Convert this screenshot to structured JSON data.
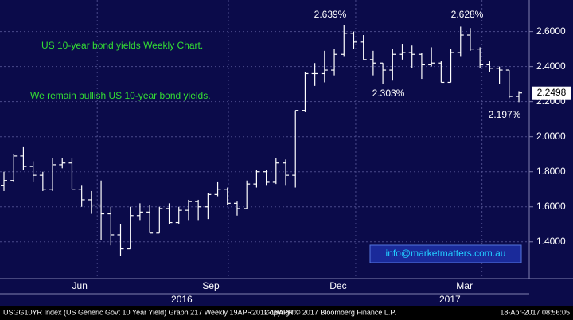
{
  "chart_data": {
    "type": "ohlc",
    "title": "US 10-year bond yields Weekly Chart.",
    "subtitle": "We remain bullish US 10-year bond yields.",
    "note": "info@marketmatters.com.au",
    "annotations": [
      "2.639%",
      "2.628%",
      "2.303%",
      "2.197%"
    ],
    "color": "#ffffff",
    "grid": true,
    "open": [
      1.72,
      1.75,
      1.89,
      1.83,
      1.78,
      1.7,
      1.84,
      1.85,
      1.7,
      1.64,
      1.61,
      1.56,
      1.44,
      1.36,
      1.55,
      1.57,
      1.45,
      1.59,
      1.51,
      1.58,
      1.63,
      1.6,
      1.67,
      1.7,
      1.62,
      1.59,
      1.73,
      1.8,
      1.74,
      1.85,
      1.78,
      2.15,
      2.36,
      2.36,
      2.38,
      2.47,
      2.59,
      2.54,
      2.44,
      2.42,
      2.38,
      2.47,
      2.48,
      2.47,
      2.41,
      2.42,
      2.31,
      2.48,
      2.58,
      2.5,
      2.41,
      2.39,
      2.38,
      2.23
    ],
    "high": [
      1.8,
      1.9,
      1.94,
      1.86,
      1.8,
      1.88,
      1.88,
      1.88,
      1.72,
      1.69,
      1.75,
      1.6,
      1.5,
      1.6,
      1.62,
      1.61,
      1.6,
      1.62,
      1.6,
      1.64,
      1.64,
      1.68,
      1.74,
      1.71,
      1.63,
      1.75,
      1.81,
      1.81,
      1.88,
      1.87,
      2.15,
      2.37,
      2.42,
      2.49,
      2.5,
      2.639,
      2.6,
      2.58,
      2.49,
      2.42,
      2.5,
      2.53,
      2.52,
      2.48,
      2.51,
      2.43,
      2.5,
      2.628,
      2.62,
      2.51,
      2.43,
      2.4,
      2.38,
      2.26
    ],
    "low": [
      1.69,
      1.74,
      1.81,
      1.74,
      1.69,
      1.69,
      1.82,
      1.7,
      1.6,
      1.56,
      1.41,
      1.38,
      1.32,
      1.36,
      1.52,
      1.45,
      1.45,
      1.5,
      1.5,
      1.52,
      1.52,
      1.53,
      1.66,
      1.61,
      1.55,
      1.59,
      1.71,
      1.72,
      1.73,
      1.72,
      1.71,
      2.14,
      2.29,
      2.31,
      2.35,
      2.46,
      2.5,
      2.44,
      2.35,
      2.303,
      2.32,
      2.44,
      2.39,
      2.33,
      2.4,
      2.31,
      2.31,
      2.46,
      2.49,
      2.39,
      2.37,
      2.3,
      2.22,
      2.197
    ],
    "close": [
      1.75,
      1.89,
      1.83,
      1.78,
      1.7,
      1.84,
      1.85,
      1.7,
      1.64,
      1.61,
      1.56,
      1.44,
      1.36,
      1.55,
      1.57,
      1.45,
      1.59,
      1.51,
      1.58,
      1.63,
      1.6,
      1.67,
      1.7,
      1.62,
      1.59,
      1.73,
      1.8,
      1.74,
      1.85,
      1.78,
      2.15,
      2.36,
      2.36,
      2.38,
      2.47,
      2.59,
      2.54,
      2.44,
      2.42,
      2.38,
      2.47,
      2.48,
      2.47,
      2.41,
      2.42,
      2.31,
      2.48,
      2.58,
      2.5,
      2.41,
      2.39,
      2.38,
      2.23,
      2.2498
    ],
    "ylim": [
      1.19,
      2.78
    ],
    "yticks": [
      {
        "value": 2.6,
        "label": "2.6000"
      },
      {
        "value": 2.4,
        "label": "2.4000"
      },
      {
        "value": 2.2,
        "label": "2.2000"
      },
      {
        "value": 2.0,
        "label": "2.0000"
      },
      {
        "value": 1.8,
        "label": "1.8000"
      },
      {
        "value": 1.6,
        "label": "1.6000"
      },
      {
        "value": 1.4,
        "label": "1.4000"
      }
    ],
    "xticks": [
      {
        "value": 7.8,
        "label": "Jun"
      },
      {
        "value": 21.3,
        "label": "Sep"
      },
      {
        "value": 34.4,
        "label": "Dec"
      },
      {
        "value": 47.4,
        "label": "Mar"
      }
    ],
    "year_labels": [
      {
        "value": 18.3,
        "label": "2016"
      },
      {
        "value": 45.9,
        "label": "2017"
      }
    ],
    "footer": {
      "left": "USGG10YR Index (US Generic Govt 10 Year Yield) Graph 217  Weekly 19APR2012-18APR",
      "center": "Copyright© 2017 Bloomberg Finance L.P.",
      "right": "18-Apr-2017 08:56:05"
    }
  }
}
